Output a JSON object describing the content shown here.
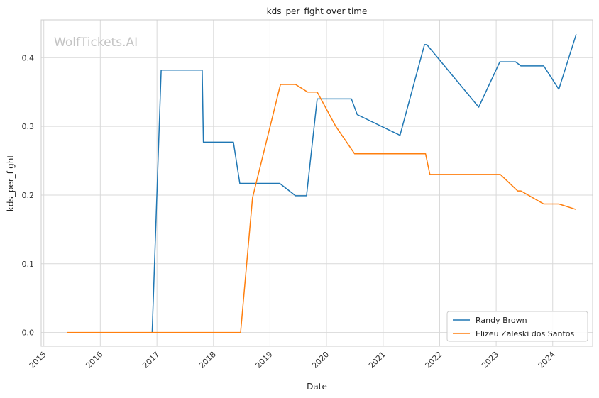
{
  "watermark": "WolfTickets.AI",
  "colors": {
    "grid": "#d9d9d9",
    "axes_frame": "#cccccc",
    "series_1": "#1f77b4",
    "series_2": "#ff7f0e"
  },
  "chart_data": {
    "type": "line",
    "title": "kds_per_fight over time",
    "xlabel": "Date",
    "ylabel": "kds_per_fight",
    "x_axis": "date",
    "xlim": [
      "2014-12-15",
      "2024-09-15"
    ],
    "ylim": [
      -0.02,
      0.455
    ],
    "x_ticks": [
      "2015",
      "2016",
      "2017",
      "2018",
      "2019",
      "2020",
      "2021",
      "2022",
      "2023",
      "2024"
    ],
    "y_ticks": [
      "0.0",
      "0.1",
      "0.2",
      "0.3",
      "0.4"
    ],
    "grid": true,
    "legend_position": "lower-right",
    "series": [
      {
        "name": "Randy Brown",
        "color": "#1f77b4",
        "points": [
          [
            "2016-12-01",
            0.0
          ],
          [
            "2017-01-28",
            0.382
          ],
          [
            "2017-10-20",
            0.382
          ],
          [
            "2017-10-28",
            0.277
          ],
          [
            "2018-05-10",
            0.277
          ],
          [
            "2018-06-20",
            0.217
          ],
          [
            "2019-03-05",
            0.217
          ],
          [
            "2019-06-15",
            0.199
          ],
          [
            "2019-08-25",
            0.199
          ],
          [
            "2019-11-02",
            0.34
          ],
          [
            "2020-06-10",
            0.34
          ],
          [
            "2020-07-18",
            0.317
          ],
          [
            "2021-04-20",
            0.287
          ],
          [
            "2021-09-25",
            0.419
          ],
          [
            "2021-10-10",
            0.419
          ],
          [
            "2022-09-10",
            0.328
          ],
          [
            "2023-01-25",
            0.394
          ],
          [
            "2023-05-06",
            0.394
          ],
          [
            "2023-06-10",
            0.388
          ],
          [
            "2023-11-04",
            0.388
          ],
          [
            "2024-02-10",
            0.354
          ],
          [
            "2024-06-01",
            0.434
          ]
        ]
      },
      {
        "name": "Elizeu Zaleski dos Santos",
        "color": "#ff7f0e",
        "points": [
          [
            "2015-05-30",
            0.0
          ],
          [
            "2018-06-25",
            0.0
          ],
          [
            "2018-09-10",
            0.196
          ],
          [
            "2019-03-10",
            0.361
          ],
          [
            "2019-06-15",
            0.361
          ],
          [
            "2019-09-01",
            0.35
          ],
          [
            "2019-11-02",
            0.35
          ],
          [
            "2020-03-01",
            0.3
          ],
          [
            "2020-07-01",
            0.26
          ],
          [
            "2021-10-02",
            0.26
          ],
          [
            "2021-10-30",
            0.23
          ],
          [
            "2023-01-28",
            0.23
          ],
          [
            "2023-05-20",
            0.206
          ],
          [
            "2023-06-10",
            0.206
          ],
          [
            "2023-11-04",
            0.187
          ],
          [
            "2024-02-10",
            0.187
          ],
          [
            "2024-06-01",
            0.179
          ]
        ]
      }
    ]
  }
}
